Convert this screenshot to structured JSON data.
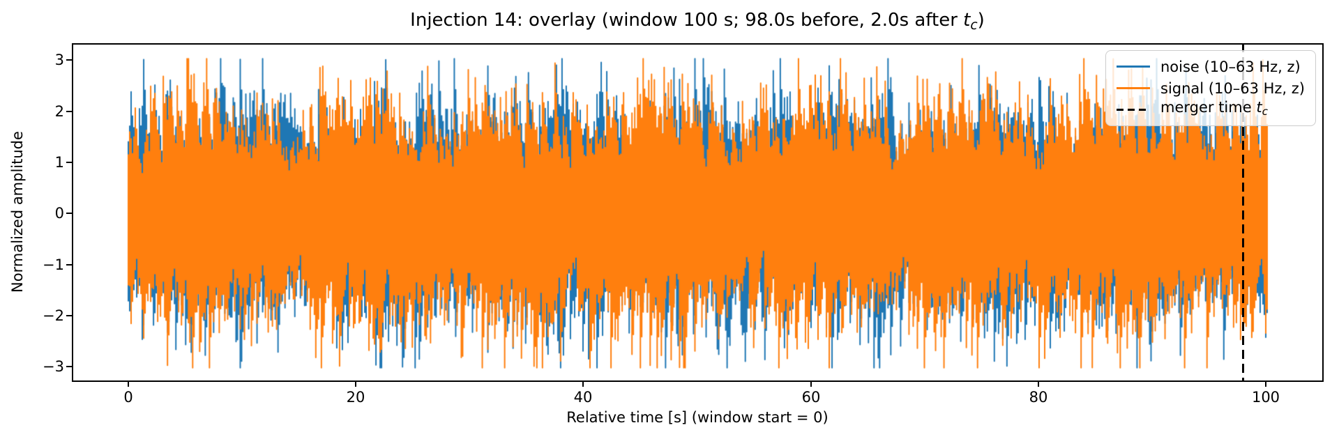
{
  "title": {
    "prefix": "Injection 14: overlay (window 100 s; 98.0s before, 2.0s after ",
    "var": "t",
    "sub": "c",
    "suffix": ")"
  },
  "axes": {
    "ylabel": "Normalized amplitude",
    "xlabel": "Relative time [s] (window start = 0)",
    "yticks": [
      "3",
      "2",
      "1",
      "0",
      "−1",
      "−2",
      "−3"
    ],
    "xticks": [
      "0",
      "20",
      "40",
      "60",
      "80",
      "100"
    ]
  },
  "legend": {
    "items": [
      {
        "label": "noise (10–63 Hz, z)",
        "color": "#1f77b4",
        "style": "solid"
      },
      {
        "label": "signal (10–63 Hz, z)",
        "color": "#ff7f0e",
        "style": "solid"
      },
      {
        "prefix": "merger time ",
        "var": "t",
        "sub": "c",
        "color": "#000000",
        "style": "dashed"
      }
    ]
  },
  "chart_data": {
    "type": "line",
    "title": "Injection 14: overlay (window 100 s; 98.0s before, 2.0s after t_c)",
    "xlabel": "Relative time [s] (window start = 0)",
    "ylabel": "Normalized amplitude",
    "xlim": [
      -6,
      105
    ],
    "ylim": [
      -3.3,
      3.3
    ],
    "xticks": [
      0,
      20,
      40,
      60,
      80,
      100
    ],
    "yticks": [
      -3,
      -2,
      -1,
      0,
      1,
      2,
      3
    ],
    "grid": false,
    "legend_position": "upper right",
    "window_s": 100,
    "before_s": 98.0,
    "after_s": 2.0,
    "merger_time_s": 98.0,
    "data_t_range": [
      0,
      100.2
    ],
    "series": [
      {
        "name": "noise (10–63 Hz, z)",
        "color": "#1f77b4",
        "description": "z-scored 10–63 Hz band-passed noise; dense oscillation, mean 0, core band ±1, peaks to ±3"
      },
      {
        "name": "signal (10–63 Hz, z)",
        "color": "#ff7f0e",
        "description": "z-scored 10–63 Hz band-passed signal stream drawn over the noise trace; mean 0, core band ±1, peaks to ±3"
      }
    ],
    "render": {
      "seed": 14,
      "column_dt": 0.123,
      "samples_per_column": 11,
      "clip": 3.02
    }
  }
}
